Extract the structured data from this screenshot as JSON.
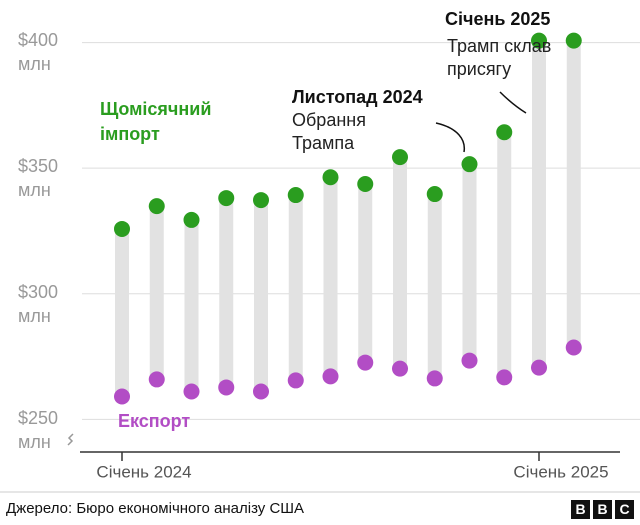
{
  "chart_data": {
    "type": "dumbbell",
    "categories": [
      "Січень 2024",
      null,
      null,
      null,
      null,
      null,
      null,
      null,
      null,
      null,
      null,
      null,
      "Січень 2025",
      null
    ],
    "series": [
      {
        "name": "Щомісячний імпорт",
        "color": "#2a9d1f",
        "values": [
          325.8,
          334.9,
          329.4,
          338.1,
          337.3,
          339.3,
          346.4,
          343.7,
          354.4,
          339.7,
          351.6,
          364.3,
          400.8,
          400.8
        ]
      },
      {
        "name": "Експорт",
        "color": "#b24dc5",
        "values": [
          259.1,
          265.9,
          261.1,
          262.7,
          261.1,
          265.5,
          267.1,
          272.6,
          270.2,
          266.3,
          273.4,
          266.7,
          270.6,
          278.6
        ]
      }
    ],
    "bar_color": "#e2e2e2",
    "ylim": [
      237,
      409
    ],
    "yticks": [
      {
        "value": 250,
        "label": "$250 млн"
      },
      {
        "value": 300,
        "label": "$300 млн"
      },
      {
        "value": 350,
        "label": "$350 млн"
      },
      {
        "value": 400,
        "label": "$400 млн"
      }
    ],
    "grid": true,
    "annotations": [
      {
        "title": "Листопад 2024",
        "text": "Обрання Трампа"
      },
      {
        "title": "Січень 2025",
        "text": "Трамп склав присягу"
      }
    ]
  },
  "source": "Джерело: Бюро економічного аналізу США",
  "logo": [
    "B",
    "B",
    "C"
  ]
}
